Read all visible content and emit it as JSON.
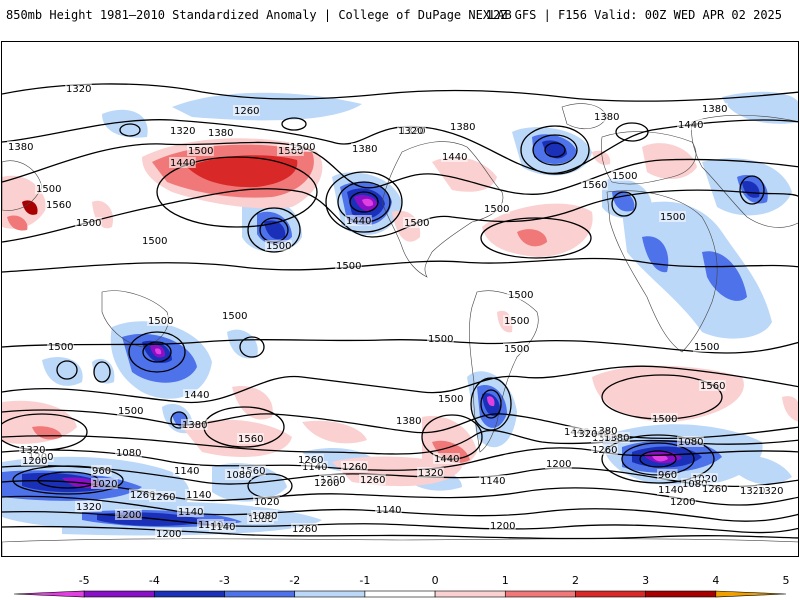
{
  "header": {
    "title": "850mb Height 1981–2010 Standardized Anomaly | College of DuPage NEXLAB",
    "run_info": "12Z GFS | F156 Valid: 00Z WED APR 02 2025"
  },
  "colors": {
    "neg5": "#e040e0",
    "neg4": "#8a10c8",
    "neg3": "#1a30b8",
    "neg2": "#4d72ea",
    "neg1": "#bcd8f8",
    "zero": "#ffffff",
    "pos1": "#fbd0d0",
    "pos2": "#f07878",
    "pos3": "#d82828",
    "pos4": "#a80000",
    "pos5": "#f0a000"
  },
  "colorbar": {
    "ticks": [
      "-5",
      "-4",
      "-3",
      "-2",
      "-1",
      "0",
      "1",
      "2",
      "3",
      "4",
      "5"
    ]
  },
  "contour_labels": [
    "1320",
    "1260",
    "1320",
    "1380",
    "1380",
    "1320",
    "1380",
    "1380",
    "1380",
    "1440",
    "1500",
    "1440",
    "1560",
    "1500",
    "1560",
    "1500",
    "1500",
    "1500",
    "1440",
    "1500",
    "1500",
    "1500",
    "1320",
    "1380",
    "1440",
    "1500",
    "1560",
    "1500",
    "1500",
    "1500",
    "1500",
    "1500",
    "1500",
    "1500",
    "1500",
    "1500",
    "1500",
    "1500",
    "1440",
    "1380",
    "1560",
    "1500",
    "1560",
    "1440",
    "1380",
    "1320",
    "1260",
    "1200",
    "1320",
    "1200",
    "1080",
    "1140",
    "960",
    "1020",
    "1260",
    "1140",
    "1080",
    "1020",
    "1140",
    "1200",
    "1320",
    "1260",
    "1200",
    "1140",
    "1080",
    "1140",
    "1200",
    "1260",
    "1380",
    "1440",
    "1500",
    "1560",
    "1440",
    "1380",
    "1260",
    "1200",
    "1140",
    "1080",
    "960",
    "1020",
    "1080",
    "1140",
    "1200",
    "1260",
    "1320",
    "1380",
    "1320",
    "1320",
    "1260",
    "1200",
    "1140",
    "1080",
    "1140",
    "1200",
    "1260"
  ]
}
